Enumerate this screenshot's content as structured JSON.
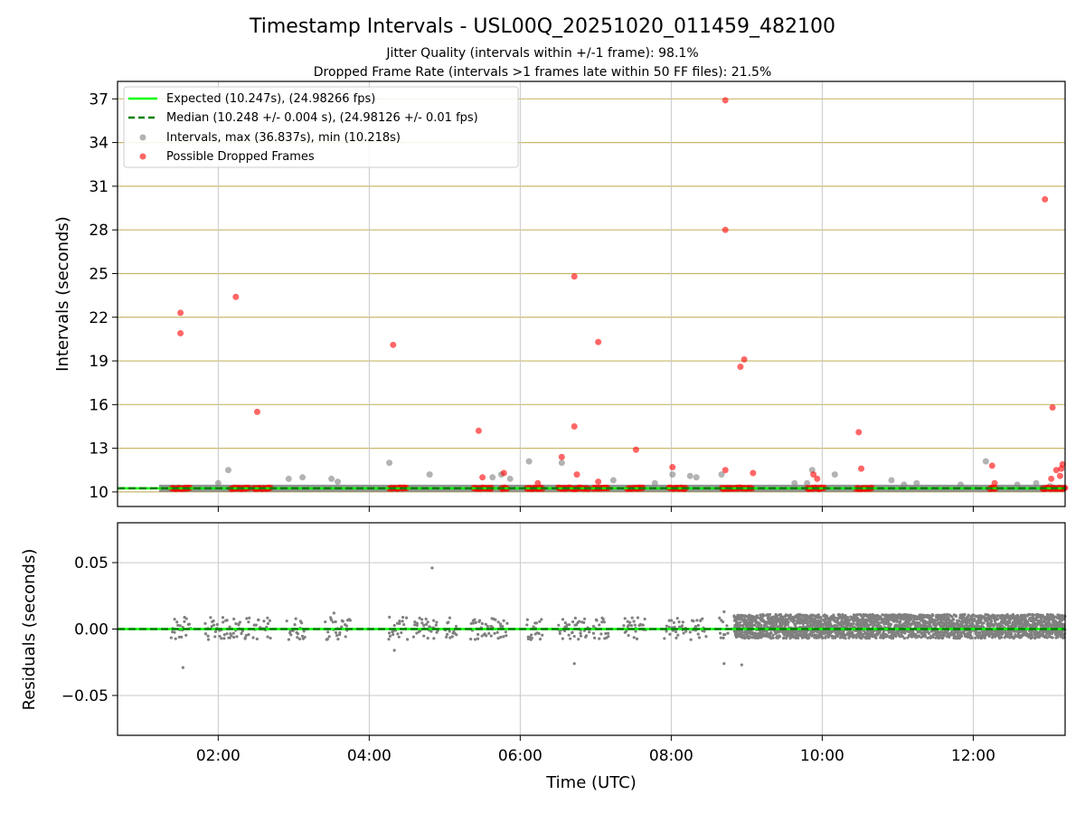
{
  "chart_data": [
    {
      "type": "scatter",
      "title": "Timestamp Intervals - USL00Q_20251020_011459_482100",
      "subtitle": [
        "Jitter Quality (intervals within +/-1 frame): 98.1%",
        "Dropped Frame Rate (intervals >1 frames late within 50 FF files): 21.5%"
      ],
      "xlabel": "",
      "ylabel": "Intervals (seconds)",
      "xlim": [
        "00:40",
        "13:13"
      ],
      "ylim": [
        9.0,
        38.2
      ],
      "yticks": [
        10,
        13,
        16,
        19,
        22,
        25,
        28,
        31,
        34,
        37
      ],
      "xticks": [
        "02:00",
        "04:00",
        "06:00",
        "08:00",
        "10:00",
        "12:00"
      ],
      "grid": true,
      "legend_position": "upper-left",
      "legend": [
        "Expected (10.247s), (24.98266 fps)",
        "Median (10.248 +/- 0.004 s), (24.98126 +/- 0.01 fps)",
        "Intervals, max (36.837s), min (10.218s)",
        "Possible Dropped Frames"
      ],
      "colors": {
        "expected": "#00ff00",
        "median": "#008000",
        "intervals": "#808080",
        "dropped": "#ff0000",
        "hgrid": "#c8b86a",
        "vgrid": "#c8c8c8"
      },
      "expected_interval": 10.247,
      "median_interval": 10.248,
      "intervals_range": {
        "start": "01:13",
        "end": "13:13",
        "baseline": 10.247
      },
      "series": [
        {
          "name": "Possible Dropped Frames",
          "points": [
            [
              "01:30",
              22.3
            ],
            [
              "01:30",
              20.9
            ],
            [
              "02:14",
              23.4
            ],
            [
              "02:31",
              15.5
            ],
            [
              "04:19",
              20.1
            ],
            [
              "05:27",
              14.2
            ],
            [
              "05:30",
              11.0
            ],
            [
              "05:47",
              11.3
            ],
            [
              "06:14",
              10.6
            ],
            [
              "06:33",
              12.4
            ],
            [
              "06:43",
              24.8
            ],
            [
              "06:43",
              14.5
            ],
            [
              "06:45",
              11.2
            ],
            [
              "07:02",
              20.3
            ],
            [
              "07:02",
              10.7
            ],
            [
              "07:32",
              12.9
            ],
            [
              "08:01",
              11.7
            ],
            [
              "08:43",
              36.9
            ],
            [
              "08:43",
              28.0
            ],
            [
              "08:43",
              11.5
            ],
            [
              "08:55",
              18.6
            ],
            [
              "08:58",
              19.1
            ],
            [
              "09:05",
              11.3
            ],
            [
              "09:53",
              11.2
            ],
            [
              "09:56",
              10.9
            ],
            [
              "10:29",
              14.1
            ],
            [
              "10:31",
              11.6
            ],
            [
              "12:15",
              11.8
            ],
            [
              "12:17",
              10.6
            ],
            [
              "12:57",
              30.1
            ],
            [
              "13:03",
              15.8
            ],
            [
              "13:02",
              10.9
            ],
            [
              "13:06",
              11.5
            ],
            [
              "13:09",
              11.1
            ],
            [
              "13:10",
              11.6
            ],
            [
              "13:11",
              11.9
            ]
          ],
          "clusters": [
            [
              "01:23",
              "01:38"
            ],
            [
              "02:10",
              "02:25"
            ],
            [
              "02:28",
              "02:42"
            ],
            [
              "04:16",
              "04:30"
            ],
            [
              "05:23",
              "05:38"
            ],
            [
              "05:45",
              "05:50"
            ],
            [
              "06:05",
              "06:18"
            ],
            [
              "06:30",
              "06:55"
            ],
            [
              "06:58",
              "07:10"
            ],
            [
              "07:25",
              "07:38"
            ],
            [
              "07:58",
              "08:12"
            ],
            [
              "08:40",
              "09:05"
            ],
            [
              "09:48",
              "10:02"
            ],
            [
              "10:27",
              "10:40"
            ],
            [
              "12:13",
              "12:18"
            ],
            [
              "12:55",
              "13:13"
            ]
          ],
          "cluster_value": 10.25
        },
        {
          "name": "Intervals, max (36.837s), min (10.218s)",
          "points": [
            [
              "02:00",
              10.6
            ],
            [
              "02:08",
              11.5
            ],
            [
              "02:56",
              10.9
            ],
            [
              "03:07",
              11.0
            ],
            [
              "03:30",
              10.9
            ],
            [
              "03:35",
              10.7
            ],
            [
              "04:16",
              12.0
            ],
            [
              "04:48",
              11.2
            ],
            [
              "05:38",
              11.0
            ],
            [
              "05:45",
              11.2
            ],
            [
              "05:52",
              10.9
            ],
            [
              "06:07",
              12.1
            ],
            [
              "06:33",
              12.0
            ],
            [
              "07:14",
              10.8
            ],
            [
              "07:47",
              10.6
            ],
            [
              "08:01",
              11.2
            ],
            [
              "08:15",
              11.1
            ],
            [
              "08:20",
              11.0
            ],
            [
              "08:40",
              11.2
            ],
            [
              "09:38",
              10.6
            ],
            [
              "09:48",
              10.6
            ],
            [
              "09:52",
              11.5
            ],
            [
              "10:10",
              11.2
            ],
            [
              "10:55",
              10.8
            ],
            [
              "11:05",
              10.5
            ],
            [
              "11:15",
              10.6
            ],
            [
              "11:50",
              10.5
            ],
            [
              "12:10",
              12.1
            ],
            [
              "12:35",
              10.5
            ],
            [
              "12:50",
              10.6
            ],
            [
              "13:01",
              10.4
            ]
          ]
        }
      ]
    },
    {
      "type": "scatter",
      "title": "",
      "xlabel": "Time (UTC)",
      "ylabel": "Residuals (seconds)",
      "xlim": [
        "00:40",
        "13:13"
      ],
      "ylim": [
        -0.08,
        0.08
      ],
      "yticks": [
        0.05,
        0.0,
        -0.05
      ],
      "ytick_labels": [
        "0.05",
        "0.00",
        "−0.05"
      ],
      "xticks": [
        "02:00",
        "04:00",
        "06:00",
        "08:00",
        "10:00",
        "12:00"
      ],
      "grid": true,
      "colors": {
        "residuals": "#808080",
        "expected": "#00ff00",
        "median": "#008000"
      },
      "series": [
        {
          "name": "Residuals",
          "sparse_clusters": [
            [
              "01:23",
              "01:38"
            ],
            [
              "01:50",
              "02:25"
            ],
            [
              "02:28",
              "02:42"
            ],
            [
              "02:55",
              "03:10"
            ],
            [
              "03:25",
              "03:45"
            ],
            [
              "04:15",
              "04:30"
            ],
            [
              "04:35",
              "04:55"
            ],
            [
              "05:00",
              "05:10"
            ],
            [
              "05:20",
              "05:50"
            ],
            [
              "06:05",
              "06:18"
            ],
            [
              "06:30",
              "06:55"
            ],
            [
              "06:58",
              "07:10"
            ],
            [
              "07:22",
              "07:40"
            ],
            [
              "07:55",
              "08:12"
            ],
            [
              "08:15",
              "08:28"
            ],
            [
              "08:38",
              "08:45"
            ]
          ],
          "sparse_spread": [
            -0.008,
            0.009
          ],
          "dense_range": [
            "08:50",
            "13:13"
          ],
          "dense_spread": [
            -0.007,
            0.011
          ],
          "outliers": [
            [
              "04:50",
              0.046
            ],
            [
              "01:32",
              -0.029
            ],
            [
              "06:43",
              -0.026
            ],
            [
              "08:42",
              -0.026
            ],
            [
              "08:56",
              -0.027
            ],
            [
              "04:20",
              -0.016
            ],
            [
              "03:32",
              0.012
            ],
            [
              "08:42",
              0.013
            ]
          ]
        }
      ]
    }
  ]
}
